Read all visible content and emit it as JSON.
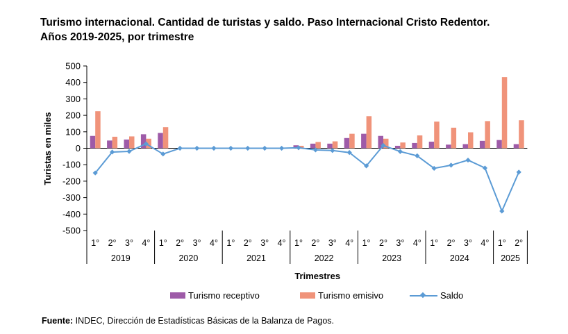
{
  "title_line1": "Turismo internacional. Cantidad de turistas y saldo. Paso Internacional Cristo Redentor.",
  "title_line2": "Años 2019-2025, por trimestre",
  "source_label": "Fuente:",
  "source_text": " INDEC, Dirección de Estadísticas Básicas de la Balanza de Pagos.",
  "colors": {
    "receptivo": "#9E5BA8",
    "emisivo": "#F0937A",
    "saldo": "#5B9BD5"
  },
  "chart_data": {
    "type": "bar",
    "ylabel": "Turistas en miles",
    "xlabel": "Trimestres",
    "ylim": [
      -500,
      500
    ],
    "yticks": [
      -500,
      -400,
      -300,
      -200,
      -100,
      0,
      100,
      200,
      300,
      400,
      500
    ],
    "grid": false,
    "legend": "bottom",
    "years": [
      {
        "label": "2019",
        "quarters": [
          "1°",
          "2°",
          "3°",
          "4°"
        ]
      },
      {
        "label": "2020",
        "quarters": [
          "1°",
          "2°",
          "3°",
          "4°"
        ]
      },
      {
        "label": "2021",
        "quarters": [
          "1°",
          "2°",
          "3°",
          "4°"
        ]
      },
      {
        "label": "2022",
        "quarters": [
          "1°",
          "2°",
          "3°",
          "4°"
        ]
      },
      {
        "label": "2023",
        "quarters": [
          "1°",
          "2°",
          "3°",
          "4°"
        ]
      },
      {
        "label": "2024",
        "quarters": [
          "1°",
          "2°",
          "3°",
          "4°"
        ]
      },
      {
        "label": "2025",
        "quarters": [
          "1°",
          "2°"
        ]
      }
    ],
    "series": [
      {
        "name": "Turismo receptivo",
        "type": "bar",
        "values": [
          75,
          47,
          53,
          85,
          93,
          0,
          0,
          0,
          0,
          0,
          0,
          0,
          18,
          28,
          28,
          62,
          88,
          75,
          15,
          32,
          40,
          22,
          25,
          45,
          50,
          25
        ]
      },
      {
        "name": "Turismo emisivo",
        "type": "bar",
        "values": [
          225,
          70,
          72,
          58,
          128,
          0,
          0,
          0,
          0,
          0,
          0,
          0,
          15,
          38,
          42,
          88,
          195,
          58,
          35,
          78,
          162,
          125,
          97,
          165,
          432,
          170
        ]
      },
      {
        "name": "Saldo",
        "type": "line",
        "values": [
          -150,
          -23,
          -19,
          27,
          -35,
          0,
          0,
          0,
          0,
          0,
          0,
          0,
          3,
          -10,
          -14,
          -26,
          -107,
          17,
          -20,
          -46,
          -122,
          -103,
          -72,
          -120,
          -382,
          -145
        ]
      }
    ]
  }
}
